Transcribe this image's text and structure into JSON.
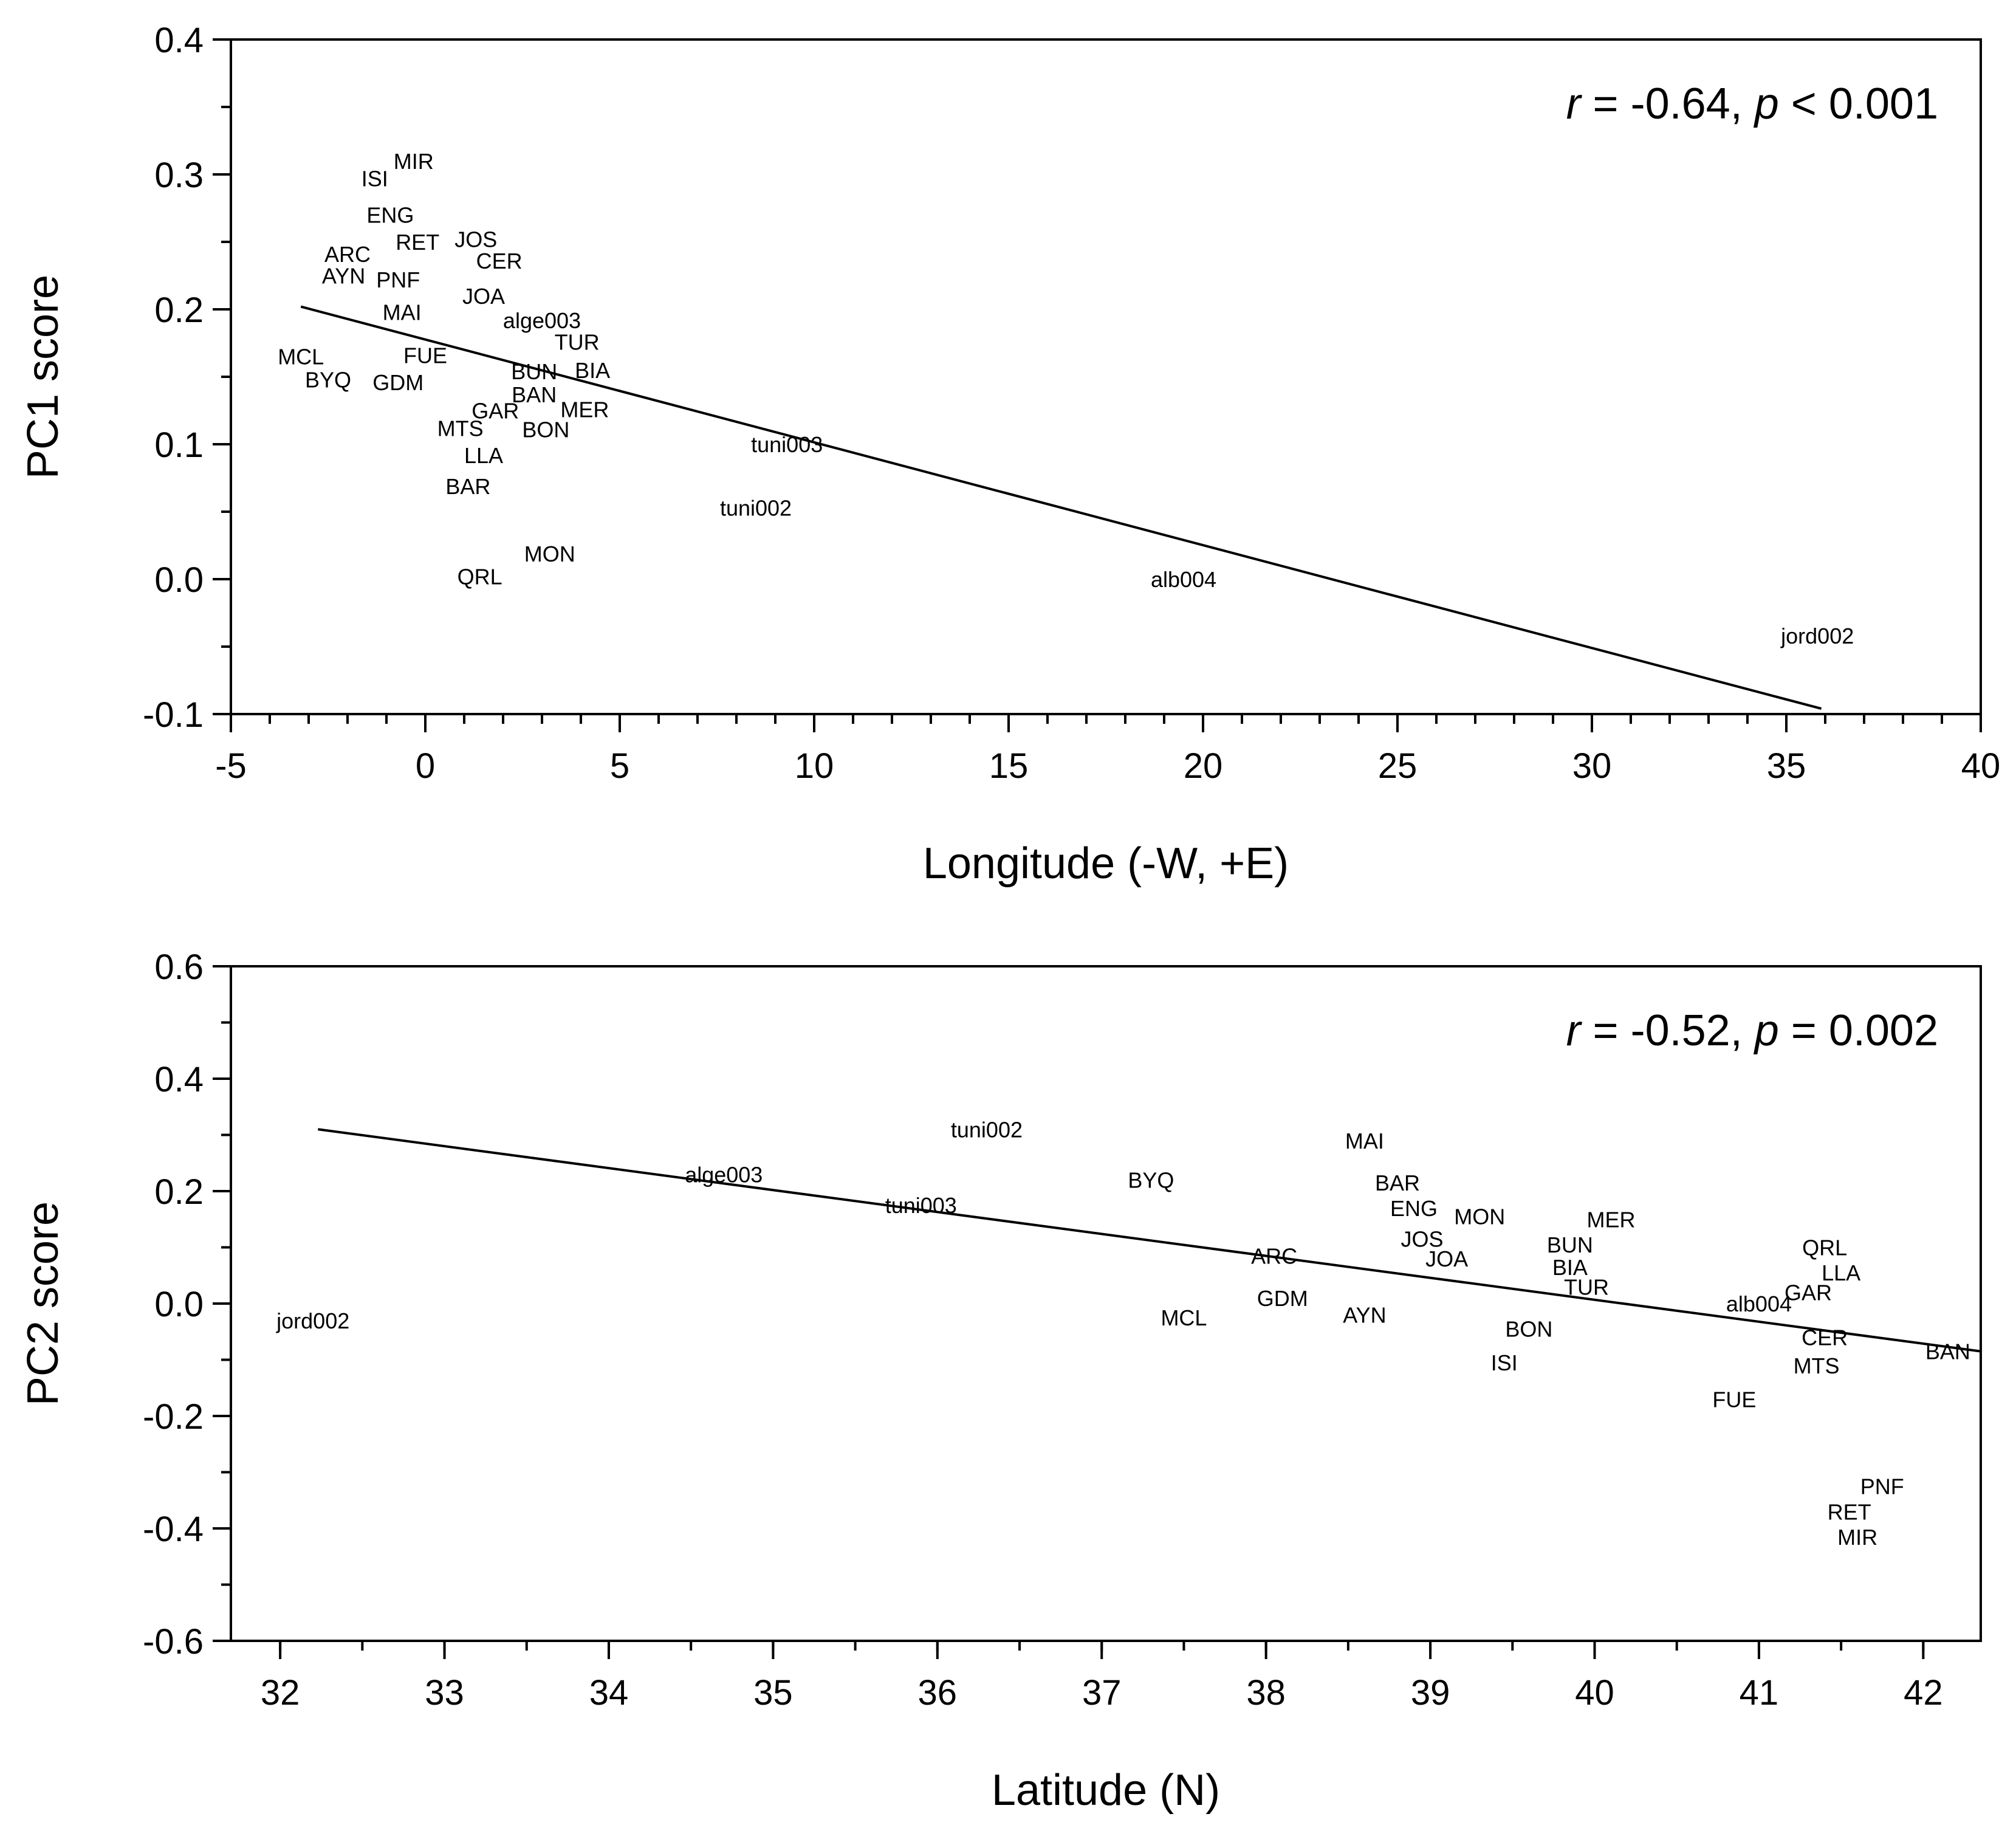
{
  "chart_data": [
    {
      "type": "scatter",
      "xlabel": "Longitude (-W, +E)",
      "ylabel": "PC1 score",
      "xlim": [
        -5,
        40
      ],
      "ylim": [
        -0.1,
        0.4
      ],
      "xticks": [
        -5,
        0,
        5,
        10,
        15,
        20,
        25,
        30,
        35,
        40
      ],
      "xtick_labels": [
        "-5",
        "0",
        "5",
        "10",
        "15",
        "20",
        "25",
        "30",
        "35",
        "40"
      ],
      "yticks": [
        -0.1,
        0.0,
        0.1,
        0.2,
        0.3,
        0.4
      ],
      "ytick_labels": [
        "-0.1",
        "0.0",
        "0.1",
        "0.2",
        "0.3",
        "0.4"
      ],
      "xminor_step": 1,
      "yminor_step": 0.05,
      "grid": false,
      "annotation": {
        "r_symbol": "r",
        "r_value": " = -0.64, ",
        "p_symbol": "p",
        "p_value": " < 0.001",
        "position": "top-right"
      },
      "fit_line": {
        "x": [
          -3.2,
          35.9
        ],
        "y": [
          0.202,
          -0.096
        ]
      },
      "points": [
        {
          "label": "MIR",
          "x": -0.3,
          "y": 0.31
        },
        {
          "label": "ISI",
          "x": -1.3,
          "y": 0.297
        },
        {
          "label": "ENG",
          "x": -0.9,
          "y": 0.27
        },
        {
          "label": "RET",
          "x": -0.2,
          "y": 0.25
        },
        {
          "label": "JOS",
          "x": 1.3,
          "y": 0.252
        },
        {
          "label": "ARC",
          "x": -2.0,
          "y": 0.241
        },
        {
          "label": "CER",
          "x": 1.9,
          "y": 0.236
        },
        {
          "label": "AYN",
          "x": -2.1,
          "y": 0.225
        },
        {
          "label": "PNF",
          "x": -0.7,
          "y": 0.222
        },
        {
          "label": "JOA",
          "x": 1.5,
          "y": 0.21
        },
        {
          "label": "MAI",
          "x": -0.6,
          "y": 0.198
        },
        {
          "label": "alge003",
          "x": 3.0,
          "y": 0.192
        },
        {
          "label": "TUR",
          "x": 3.9,
          "y": 0.176
        },
        {
          "label": "MCL",
          "x": -3.2,
          "y": 0.165
        },
        {
          "label": "FUE",
          "x": 0.0,
          "y": 0.166
        },
        {
          "label": "BUN",
          "x": 2.8,
          "y": 0.154
        },
        {
          "label": "BIA",
          "x": 4.3,
          "y": 0.155
        },
        {
          "label": "BYQ",
          "x": -2.5,
          "y": 0.148
        },
        {
          "label": "GDM",
          "x": -0.7,
          "y": 0.146
        },
        {
          "label": "BAN",
          "x": 2.8,
          "y": 0.137
        },
        {
          "label": "GAR",
          "x": 1.8,
          "y": 0.125
        },
        {
          "label": "MER",
          "x": 4.1,
          "y": 0.126
        },
        {
          "label": "MTS",
          "x": 0.9,
          "y": 0.112
        },
        {
          "label": "BON",
          "x": 3.1,
          "y": 0.111
        },
        {
          "label": "tuni003",
          "x": 9.3,
          "y": 0.1
        },
        {
          "label": "LLA",
          "x": 1.5,
          "y": 0.092
        },
        {
          "label": "BAR",
          "x": 1.1,
          "y": 0.069
        },
        {
          "label": "tuni002",
          "x": 8.5,
          "y": 0.053
        },
        {
          "label": "MON",
          "x": 3.2,
          "y": 0.019
        },
        {
          "label": "QRL",
          "x": 1.4,
          "y": 0.002
        },
        {
          "label": "alb004",
          "x": 19.5,
          "y": 0.0
        },
        {
          "label": "jord002",
          "x": 35.8,
          "y": -0.042
        }
      ]
    },
    {
      "type": "scatter",
      "xlabel": "Latitude (N)",
      "ylabel": "PC2 score",
      "xlim": [
        31.7,
        42.35
      ],
      "ylim": [
        -0.6,
        0.6
      ],
      "xticks": [
        32,
        33,
        34,
        35,
        36,
        37,
        38,
        39,
        40,
        41,
        42
      ],
      "xtick_labels": [
        "32",
        "33",
        "34",
        "35",
        "36",
        "37",
        "38",
        "39",
        "40",
        "41",
        "42"
      ],
      "yticks": [
        -0.6,
        -0.4,
        -0.2,
        0.0,
        0.2,
        0.4,
        0.6
      ],
      "ytick_labels": [
        "-0.6",
        "-0.4",
        "-0.2",
        "0.0",
        "0.2",
        "0.4",
        "0.6"
      ],
      "xminor_step": 0.5,
      "yminor_step": 0.1,
      "grid": false,
      "annotation": {
        "r_symbol": "r",
        "r_value": " = -0.52, ",
        "p_symbol": "p",
        "p_value": " = 0.002",
        "position": "top-right"
      },
      "fit_line": {
        "x": [
          32.23,
          42.35
        ],
        "y": [
          0.31,
          -0.085
        ]
      },
      "points": [
        {
          "label": "tuni002",
          "x": 36.3,
          "y": 0.31
        },
        {
          "label": "MAI",
          "x": 38.6,
          "y": 0.29
        },
        {
          "label": "alge003",
          "x": 34.7,
          "y": 0.23
        },
        {
          "label": "BYQ",
          "x": 37.3,
          "y": 0.22
        },
        {
          "label": "BAR",
          "x": 38.8,
          "y": 0.215
        },
        {
          "label": "tuni003",
          "x": 35.9,
          "y": 0.175
        },
        {
          "label": "ENG",
          "x": 38.9,
          "y": 0.17
        },
        {
          "label": "MON",
          "x": 39.3,
          "y": 0.155
        },
        {
          "label": "MER",
          "x": 40.1,
          "y": 0.15
        },
        {
          "label": "JOS",
          "x": 38.95,
          "y": 0.115
        },
        {
          "label": "BUN",
          "x": 39.85,
          "y": 0.105
        },
        {
          "label": "QRL",
          "x": 41.4,
          "y": 0.1
        },
        {
          "label": "JOA",
          "x": 39.1,
          "y": 0.08
        },
        {
          "label": "ARC",
          "x": 38.05,
          "y": 0.085
        },
        {
          "label": "BIA",
          "x": 39.85,
          "y": 0.065
        },
        {
          "label": "LLA",
          "x": 41.5,
          "y": 0.055
        },
        {
          "label": "TUR",
          "x": 39.95,
          "y": 0.03
        },
        {
          "label": "GAR",
          "x": 41.3,
          "y": 0.02
        },
        {
          "label": "GDM",
          "x": 38.1,
          "y": 0.01
        },
        {
          "label": "alb004",
          "x": 41.0,
          "y": 0.0
        },
        {
          "label": "AYN",
          "x": 38.6,
          "y": -0.02
        },
        {
          "label": "MCL",
          "x": 37.5,
          "y": -0.025
        },
        {
          "label": "jord002",
          "x": 32.2,
          "y": -0.03
        },
        {
          "label": "BON",
          "x": 39.6,
          "y": -0.045
        },
        {
          "label": "CER",
          "x": 41.4,
          "y": -0.06
        },
        {
          "label": "BAN",
          "x": 42.15,
          "y": -0.085
        },
        {
          "label": "ISI",
          "x": 39.45,
          "y": -0.105
        },
        {
          "label": "MTS",
          "x": 41.35,
          "y": -0.11
        },
        {
          "label": "FUE",
          "x": 40.85,
          "y": -0.17
        },
        {
          "label": "PNF",
          "x": 41.75,
          "y": -0.325
        },
        {
          "label": "RET",
          "x": 41.55,
          "y": -0.37
        },
        {
          "label": "MIR",
          "x": 41.6,
          "y": -0.415
        }
      ]
    }
  ]
}
